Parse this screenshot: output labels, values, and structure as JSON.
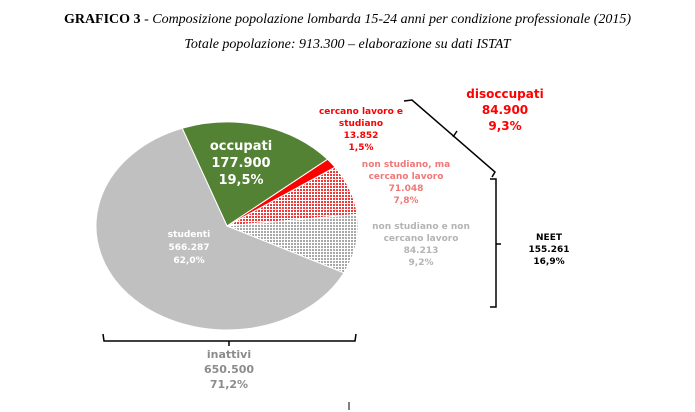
{
  "header": {
    "prefix": "GRAFICO 3",
    "title": " - Composizione popolazione lombarda 15-24 anni per condizione professionale (2015)",
    "subtitle": "Totale popolazione: 913.300 – elaborazione su dati ISTAT"
  },
  "chart_data": {
    "type": "pie",
    "title": "Composizione popolazione lombarda 15-24 anni per condizione professionale (2015)",
    "total": 913300,
    "slices": [
      {
        "label": "occupati",
        "value": 177900,
        "value_label": "177.900",
        "percent": 19.5,
        "percent_label": "19,5%",
        "color": "#548235",
        "pattern": "solid"
      },
      {
        "label": "cercano lavoro e studiano",
        "value": 13852,
        "value_label": "13.852",
        "percent": 1.5,
        "percent_label": "1,5%",
        "color": "#ff0000",
        "pattern": "solid"
      },
      {
        "label": "non studiano, ma cercano lavoro",
        "value": 71048,
        "value_label": "71.048",
        "percent": 7.8,
        "percent_label": "7,8%",
        "color": "#f26b6b",
        "pattern": "hatch"
      },
      {
        "label": "non studiano e non cercano lavoro",
        "value": 84213,
        "value_label": "84.213",
        "percent": 9.2,
        "percent_label": "9,2%",
        "color": "#b0b0b0",
        "pattern": "hatch"
      },
      {
        "label": "studenti",
        "value": 566287,
        "value_label": "566.287",
        "percent": 62.0,
        "percent_label": "62,0%",
        "color": "#c0c0c0",
        "pattern": "solid"
      }
    ],
    "groups": [
      {
        "label": "disoccupati",
        "value_label": "84.900",
        "percent_label": "9,3%",
        "color": "#ff0000"
      },
      {
        "label": "NEET",
        "value_label": "155.261",
        "percent_label": "16,9%",
        "color": "#000000"
      },
      {
        "label": "inattivi",
        "value_label": "650.500",
        "percent_label": "71,2%",
        "color": "#8c8c8c"
      }
    ]
  }
}
